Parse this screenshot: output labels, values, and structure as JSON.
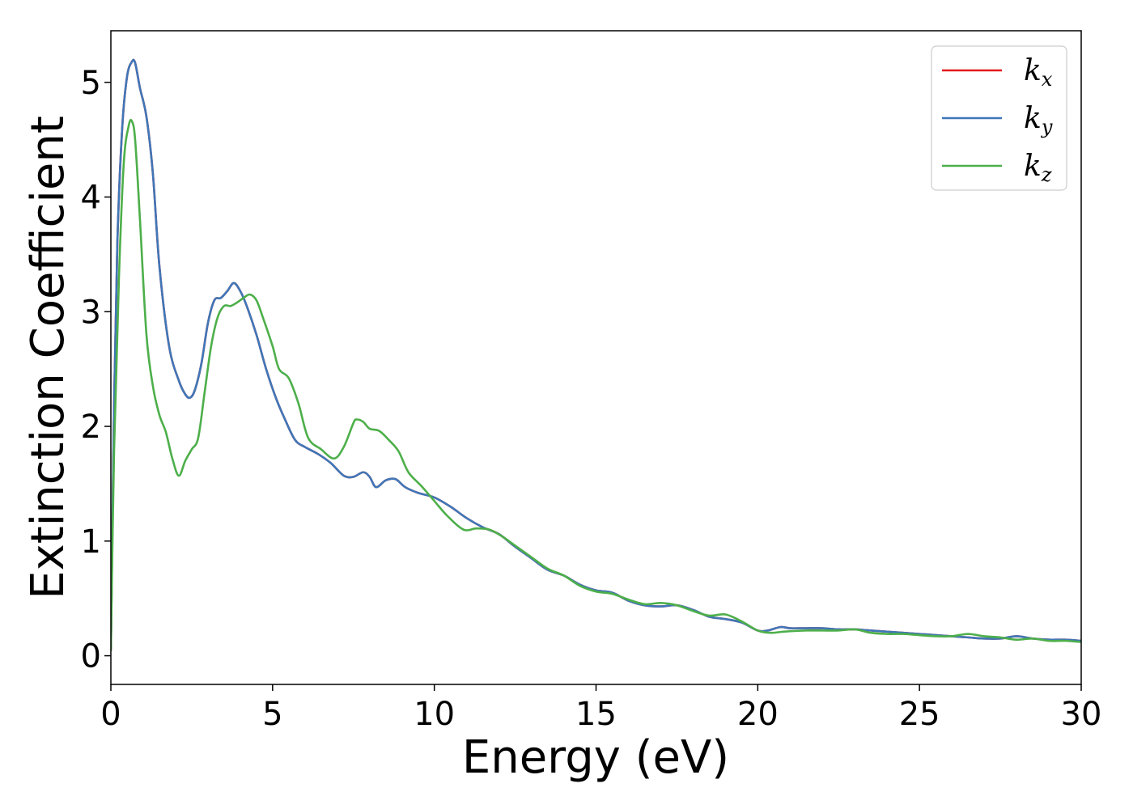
{
  "chart_data": {
    "type": "line",
    "xlabel": "Energy (eV)",
    "ylabel": "Extinction Coefficient",
    "xlim": [
      0,
      30
    ],
    "ylim": [
      -0.25,
      5.45
    ],
    "xticks": [
      "0",
      "5",
      "10",
      "15",
      "20",
      "25",
      "30"
    ],
    "yticks": [
      "0",
      "1",
      "2",
      "3",
      "4",
      "5"
    ],
    "grid": false,
    "legend_position": "top-right",
    "series": [
      {
        "name": "k_x",
        "legend_base": "k",
        "legend_sub": "x",
        "color": "#e41a1c",
        "x": [
          0,
          0.1,
          0.2,
          0.35,
          0.5,
          0.65,
          0.75,
          0.9,
          1.1,
          1.3,
          1.5,
          1.8,
          2.1,
          2.3,
          2.45,
          2.6,
          2.8,
          3.0,
          3.2,
          3.4,
          3.6,
          3.8,
          4.0,
          4.2,
          4.5,
          4.8,
          5.1,
          5.4,
          5.7,
          6.0,
          6.4,
          6.8,
          7.2,
          7.5,
          7.8,
          8.0,
          8.2,
          8.5,
          8.8,
          9.1,
          9.5,
          10.0,
          10.5,
          11.0,
          11.5,
          12.0,
          12.5,
          13.0,
          13.5,
          14.0,
          14.5,
          15.0,
          15.5,
          16.0,
          16.5,
          17.0,
          17.5,
          18.0,
          18.5,
          19.0,
          19.5,
          20.0,
          20.3,
          20.7,
          21.0,
          21.5,
          22.0,
          22.5,
          23.0,
          23.5,
          24.0,
          24.5,
          25.0,
          25.5,
          26.0,
          26.5,
          27.0,
          27.5,
          28.0,
          28.5,
          29.0,
          29.5,
          30.0
        ],
        "y": [
          0.05,
          2.2,
          3.6,
          4.6,
          5.05,
          5.18,
          5.17,
          4.95,
          4.7,
          4.2,
          3.4,
          2.7,
          2.4,
          2.28,
          2.25,
          2.32,
          2.55,
          2.9,
          3.1,
          3.12,
          3.18,
          3.25,
          3.18,
          3.05,
          2.8,
          2.5,
          2.25,
          2.05,
          1.88,
          1.82,
          1.76,
          1.68,
          1.57,
          1.56,
          1.6,
          1.56,
          1.47,
          1.53,
          1.54,
          1.47,
          1.42,
          1.38,
          1.3,
          1.2,
          1.12,
          1.06,
          0.95,
          0.85,
          0.75,
          0.7,
          0.62,
          0.57,
          0.55,
          0.48,
          0.44,
          0.43,
          0.44,
          0.4,
          0.34,
          0.32,
          0.29,
          0.22,
          0.22,
          0.25,
          0.24,
          0.24,
          0.24,
          0.23,
          0.23,
          0.22,
          0.21,
          0.2,
          0.19,
          0.18,
          0.17,
          0.16,
          0.15,
          0.15,
          0.17,
          0.15,
          0.14,
          0.14,
          0.13
        ]
      },
      {
        "name": "k_y",
        "legend_base": "k",
        "legend_sub": "y",
        "color": "#3f77b8",
        "x": [
          0,
          0.1,
          0.2,
          0.35,
          0.5,
          0.65,
          0.75,
          0.9,
          1.1,
          1.3,
          1.5,
          1.8,
          2.1,
          2.3,
          2.45,
          2.6,
          2.8,
          3.0,
          3.2,
          3.4,
          3.6,
          3.8,
          4.0,
          4.2,
          4.5,
          4.8,
          5.1,
          5.4,
          5.7,
          6.0,
          6.4,
          6.8,
          7.2,
          7.5,
          7.8,
          8.0,
          8.2,
          8.5,
          8.8,
          9.1,
          9.5,
          10.0,
          10.5,
          11.0,
          11.5,
          12.0,
          12.5,
          13.0,
          13.5,
          14.0,
          14.5,
          15.0,
          15.5,
          16.0,
          16.5,
          17.0,
          17.5,
          18.0,
          18.5,
          19.0,
          19.5,
          20.0,
          20.3,
          20.7,
          21.0,
          21.5,
          22.0,
          22.5,
          23.0,
          23.5,
          24.0,
          24.5,
          25.0,
          25.5,
          26.0,
          26.5,
          27.0,
          27.5,
          28.0,
          28.5,
          29.0,
          29.5,
          30.0
        ],
        "y": [
          0.05,
          2.2,
          3.6,
          4.6,
          5.05,
          5.18,
          5.17,
          4.95,
          4.7,
          4.2,
          3.4,
          2.7,
          2.4,
          2.28,
          2.25,
          2.32,
          2.55,
          2.9,
          3.1,
          3.12,
          3.18,
          3.25,
          3.18,
          3.05,
          2.8,
          2.5,
          2.25,
          2.05,
          1.88,
          1.82,
          1.76,
          1.68,
          1.57,
          1.56,
          1.6,
          1.56,
          1.47,
          1.53,
          1.54,
          1.47,
          1.42,
          1.38,
          1.3,
          1.2,
          1.12,
          1.06,
          0.95,
          0.85,
          0.75,
          0.7,
          0.62,
          0.57,
          0.55,
          0.48,
          0.44,
          0.43,
          0.44,
          0.4,
          0.34,
          0.32,
          0.29,
          0.22,
          0.22,
          0.25,
          0.24,
          0.24,
          0.24,
          0.23,
          0.23,
          0.22,
          0.21,
          0.2,
          0.19,
          0.18,
          0.17,
          0.16,
          0.15,
          0.15,
          0.17,
          0.15,
          0.14,
          0.14,
          0.13
        ]
      },
      {
        "name": "k_z",
        "legend_base": "k",
        "legend_sub": "z",
        "color": "#4daf4a",
        "x": [
          0,
          0.1,
          0.25,
          0.4,
          0.55,
          0.65,
          0.75,
          0.9,
          1.1,
          1.3,
          1.5,
          1.7,
          1.9,
          2.1,
          2.3,
          2.5,
          2.7,
          2.9,
          3.1,
          3.3,
          3.5,
          3.7,
          3.9,
          4.1,
          4.3,
          4.5,
          4.7,
          5.0,
          5.2,
          5.5,
          5.8,
          6.1,
          6.5,
          6.9,
          7.2,
          7.5,
          7.6,
          7.8,
          8.0,
          8.3,
          8.6,
          8.9,
          9.2,
          9.6,
          10.0,
          10.4,
          10.9,
          11.3,
          11.7,
          12.1,
          12.5,
          13.0,
          13.5,
          14.0,
          14.5,
          15.0,
          15.5,
          16.0,
          16.5,
          17.0,
          17.5,
          18.0,
          18.5,
          19.0,
          19.5,
          20.0,
          20.4,
          20.8,
          21.5,
          22.0,
          22.5,
          23.0,
          23.5,
          24.0,
          24.5,
          25.0,
          25.5,
          26.0,
          26.5,
          27.0,
          27.5,
          28.0,
          28.5,
          29.0,
          29.5,
          30.0
        ],
        "y": [
          0.05,
          1.8,
          3.3,
          4.3,
          4.62,
          4.66,
          4.5,
          3.8,
          2.8,
          2.35,
          2.1,
          1.95,
          1.72,
          1.57,
          1.7,
          1.8,
          1.9,
          2.3,
          2.7,
          2.95,
          3.05,
          3.05,
          3.08,
          3.12,
          3.15,
          3.1,
          2.95,
          2.7,
          2.5,
          2.42,
          2.2,
          1.9,
          1.8,
          1.72,
          1.82,
          2.03,
          2.06,
          2.04,
          1.98,
          1.96,
          1.88,
          1.78,
          1.6,
          1.48,
          1.35,
          1.22,
          1.1,
          1.11,
          1.1,
          1.04,
          0.96,
          0.86,
          0.76,
          0.7,
          0.61,
          0.56,
          0.54,
          0.49,
          0.45,
          0.46,
          0.44,
          0.39,
          0.35,
          0.36,
          0.3,
          0.22,
          0.2,
          0.21,
          0.22,
          0.22,
          0.22,
          0.23,
          0.2,
          0.19,
          0.19,
          0.18,
          0.17,
          0.17,
          0.19,
          0.17,
          0.16,
          0.14,
          0.15,
          0.13,
          0.13,
          0.12
        ]
      }
    ]
  }
}
